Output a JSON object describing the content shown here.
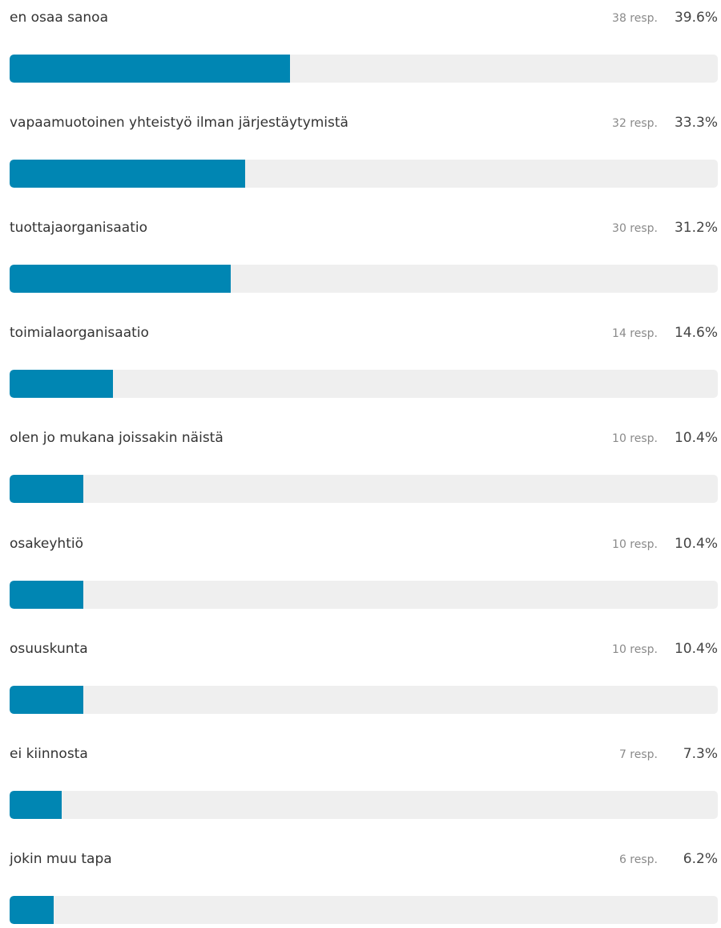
{
  "colors": {
    "bar_fill": "#0086b3",
    "bar_track": "#efefef"
  },
  "chart_data": {
    "type": "bar",
    "orientation": "horizontal",
    "categories": [
      "en osaa sanoa",
      "vapaamuotoinen yhteistyö ilman järjestäytymistä",
      "tuottajaorganisaatio",
      "toimialaorganisaatio",
      "olen jo mukana joissakin näistä",
      "osakeyhtiö",
      "osuuskunta",
      "ei kiinnosta",
      "jokin muu tapa"
    ],
    "values": [
      39.6,
      33.3,
      31.2,
      14.6,
      10.4,
      10.4,
      10.4,
      7.3,
      6.2
    ],
    "responses": [
      38,
      32,
      30,
      14,
      10,
      10,
      10,
      7,
      6
    ],
    "response_labels": [
      "38 resp.",
      "32 resp.",
      "30 resp.",
      "14 resp.",
      "10 resp.",
      "10 resp.",
      "10 resp.",
      "7 resp.",
      "6 resp."
    ],
    "percent_labels": [
      "39.6%",
      "33.3%",
      "31.2%",
      "14.6%",
      "10.4%",
      "10.4%",
      "10.4%",
      "7.3%",
      "6.2%"
    ],
    "xlim": [
      0,
      100
    ],
    "grid": false
  }
}
